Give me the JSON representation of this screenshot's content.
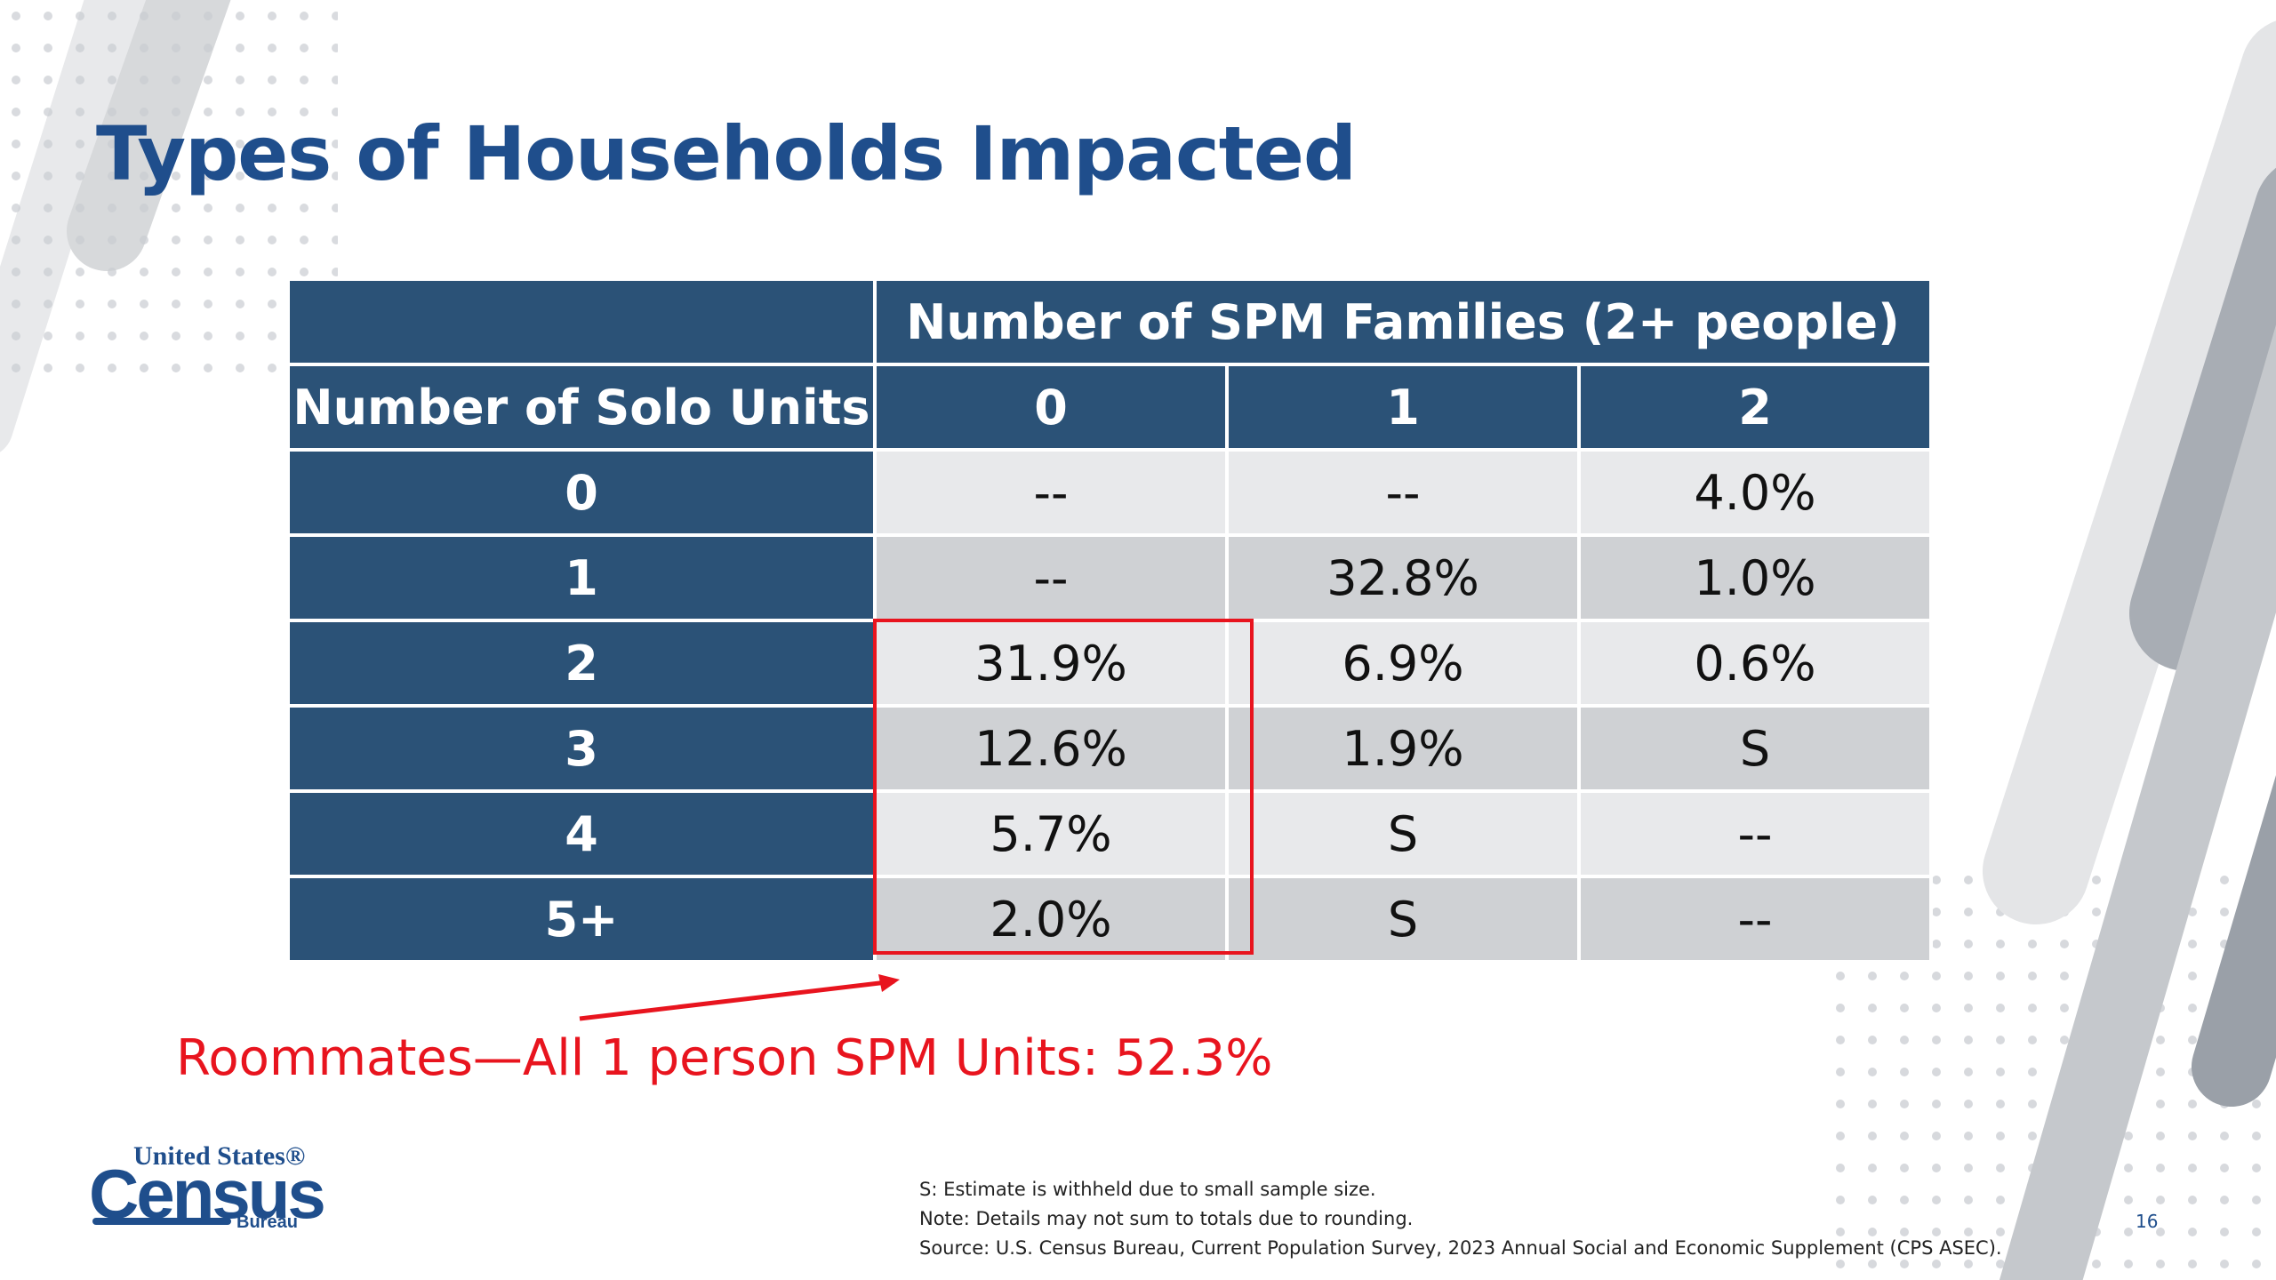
{
  "title": "Types of Households Impacted",
  "table": {
    "group_header": "Number of SPM Families (2+ people)",
    "row_header": "Number of Solo Units",
    "columns": [
      "0",
      "1",
      "2"
    ],
    "rows": [
      {
        "label": "0",
        "values": [
          "--",
          "--",
          "4.0%"
        ]
      },
      {
        "label": "1",
        "values": [
          "--",
          "32.8%",
          "1.0%"
        ]
      },
      {
        "label": "2",
        "values": [
          "31.9%",
          "6.9%",
          "0.6%"
        ]
      },
      {
        "label": "3",
        "values": [
          "12.6%",
          "1.9%",
          "S"
        ]
      },
      {
        "label": "4",
        "values": [
          "5.7%",
          "S",
          "--"
        ]
      },
      {
        "label": "5+",
        "values": [
          "2.0%",
          "S",
          "--"
        ]
      }
    ]
  },
  "callout": "Roommates—All 1 person SPM Units: 52.3%",
  "logo": {
    "top": "United States®",
    "main": "Census",
    "bottom": "Bureau"
  },
  "footnotes": {
    "line1": "S: Estimate is withheld due to small sample size.",
    "line2": "Note: Details may not sum to totals due to rounding.",
    "line3": "Source: U.S. Census Bureau, Current Population Survey, 2023 Annual Social and Economic Supplement (CPS ASEC)."
  },
  "page_number": "16",
  "colors": {
    "title": "#1f4e8c",
    "header_bg": "#2b5277",
    "highlight": "#e8141e",
    "row_light": "#e8e9eb",
    "row_dark": "#cfd1d4"
  }
}
